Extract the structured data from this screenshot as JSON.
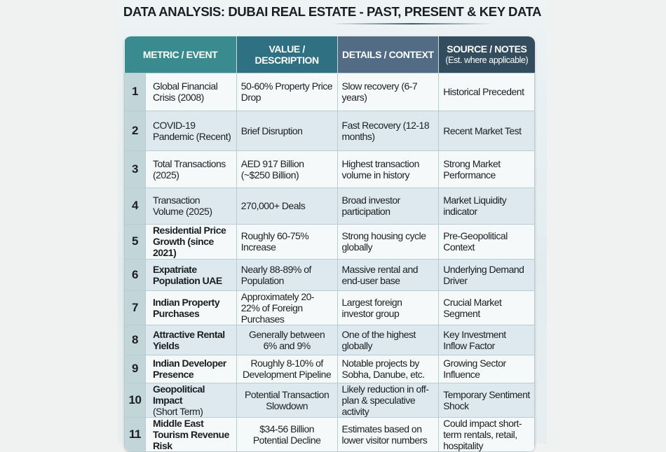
{
  "title": "DATA ANALYSIS: DUBAI REAL ESTATE - PAST, PRESENT & KEY DATA",
  "headers": {
    "metric": "METRIC / EVENT",
    "value": "VALUE / DESCRIPTION",
    "details": "DETAILS / CONTEXT",
    "source": "SOURCE / NOTES",
    "source_sub": "(Est. where applicable)"
  },
  "colors": {
    "metric_header": "#3a8b8f",
    "value_header": "#2f7082",
    "details_header": "#536c86",
    "source_header": "#334d5e"
  },
  "rows": [
    {
      "n": "1",
      "metric": "Global Financial Crisis (2008)",
      "value": "50-60% Property Price Drop",
      "details": "Slow recovery (6-7 years)",
      "source": "Historical Precedent"
    },
    {
      "n": "2",
      "metric": "COVID-19 Pandemic (Recent)",
      "value": "Brief Disruption",
      "details": "Fast Recovery (12-18 months)",
      "source": "Recent Market Test"
    },
    {
      "n": "3",
      "metric": "Total Transactions (2025)",
      "value": "AED 917 Billion (~$250 Billion)",
      "details": "Highest transaction volume in history",
      "source": "Strong Market Performance"
    },
    {
      "n": "4",
      "metric": "Transaction Volume (2025)",
      "value": "270,000+ Deals",
      "details": "Broad investor participation",
      "source": "Market Liquidity indicator"
    },
    {
      "n": "5",
      "metric": "Residential Price Growth (since 2021)",
      "value": "Roughly 60-75% Increase",
      "details": "Strong housing cycle globally",
      "source": "Pre-Geopolitical Context"
    },
    {
      "n": "6",
      "metric": "Expatriate Population UAE",
      "value": "Nearly 88-89% of Population",
      "details": "Massive rental and end-user base",
      "source": "Underlying Demand Driver"
    },
    {
      "n": "7",
      "metric": "Indian Property Purchases",
      "value": "Approximately 20-22% of Foreign Purchases",
      "details": "Largest foreign investor group",
      "source": "Crucial Market Segment"
    },
    {
      "n": "8",
      "metric": "Attractive Rental Yields",
      "value": "Generally between 6% and 9%",
      "details": "One of the highest globally",
      "source": "Key Investment Inflow Factor"
    },
    {
      "n": "9",
      "metric": "Indian Developer Presence",
      "value": "Roughly 8-10% of Development Pipeline",
      "details": "Notable projects by Sobha, Danube, etc.",
      "source": "Growing Sector Influence"
    },
    {
      "n": "10",
      "metric": "Geopolitical Impact",
      "metric2": "(Short Term)",
      "value": "Potential Transaction Slowdown",
      "details": "Likely reduction in off-plan & speculative activity",
      "source": "Temporary Sentiment Shock"
    },
    {
      "n": "11",
      "metric": "Middle East Tourism Revenue Risk",
      "value": "$34-56 Billion Potential Decline",
      "details": "Estimates based on lower visitor numbers",
      "source": "Could impact short-term rentals, retail, hospitality"
    }
  ]
}
